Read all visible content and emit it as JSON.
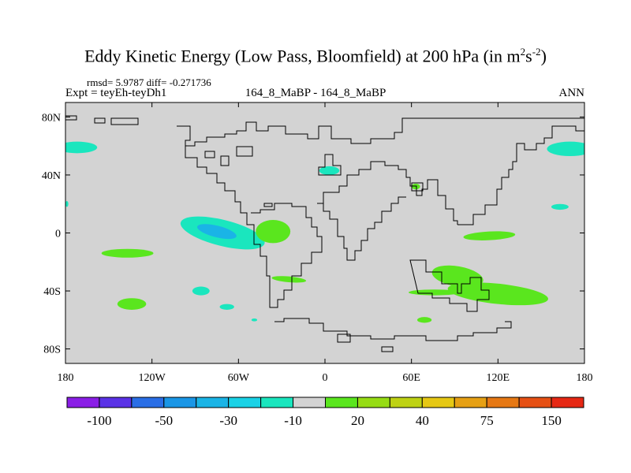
{
  "header": {
    "title_main": "Eddy Kinetic Energy (Low Pass, Bloomfield) at 200 hPa (in m",
    "title_exp1": "2",
    "title_mid": "s",
    "title_exp2": "-2",
    "title_end": ")",
    "stats": "rmsd= 5.9787 diff= -0.271736",
    "expt": "Expt = teyEh-teyDh1",
    "case": "164_8_MaBP - 164_8_MaBP",
    "season": "ANN"
  },
  "chart_data": {
    "type": "heatmap",
    "title": "Eddy Kinetic Energy (Low Pass, Bloomfield) at 200 hPa (in m2s-2)",
    "xlim": [
      -180,
      180
    ],
    "ylim": [
      -90,
      90
    ],
    "x_ticks": [
      {
        "value": -180,
        "label": "180"
      },
      {
        "value": -120,
        "label": "120W"
      },
      {
        "value": -60,
        "label": "60W"
      },
      {
        "value": 0,
        "label": "0"
      },
      {
        "value": 60,
        "label": "60E"
      },
      {
        "value": 120,
        "label": "120E"
      },
      {
        "value": 180,
        "label": "180"
      }
    ],
    "y_ticks": [
      {
        "value": 80,
        "label": "80N"
      },
      {
        "value": 40,
        "label": "40N"
      },
      {
        "value": 0,
        "label": "0"
      },
      {
        "value": -40,
        "label": "40S"
      },
      {
        "value": -80,
        "label": "80S"
      }
    ],
    "colorbar": {
      "colors": [
        "#8a1ee6",
        "#5a32e6",
        "#2a6ee6",
        "#1a96e6",
        "#1ab4e6",
        "#1ad2e6",
        "#1ae6be",
        "#d3d3d3",
        "#5ae61e",
        "#96dc14",
        "#bed214",
        "#e6c814",
        "#e6a014",
        "#e67814",
        "#e65014",
        "#e62814"
      ],
      "labels": [
        {
          "boundary": 1,
          "text": "-100"
        },
        {
          "boundary": 3,
          "text": "-50"
        },
        {
          "boundary": 5,
          "text": "-30"
        },
        {
          "boundary": 7,
          "text": "-10"
        },
        {
          "boundary": 9,
          "text": "20"
        },
        {
          "boundary": 11,
          "text": "40"
        },
        {
          "boundary": 13,
          "text": "75"
        },
        {
          "boundary": 15,
          "text": "150"
        }
      ]
    },
    "regions": [
      {
        "name": "central-pacific-negative",
        "level": "-20",
        "color": "#1ae6be",
        "lon": -71,
        "lat": 0,
        "rlon": 30,
        "rlat": 9,
        "rot": 14
      },
      {
        "name": "central-pacific-core",
        "level": "-30",
        "color": "#1ab4e6",
        "lon": -75,
        "lat": 1,
        "rlon": 14,
        "rlat": 4,
        "rot": 14
      },
      {
        "name": "pacific-positive-strip",
        "level": "15",
        "color": "#5ae61e",
        "lon": -36,
        "lat": 1,
        "rlon": 12,
        "rlat": 8,
        "rot": 0
      },
      {
        "name": "north-pacific-west",
        "level": "-15",
        "color": "#1ae6be",
        "lon": -172,
        "lat": 59,
        "rlon": 14,
        "rlat": 4,
        "rot": 0
      },
      {
        "name": "north-atlantic-east",
        "level": "-15",
        "color": "#1ae6be",
        "lon": 170,
        "lat": 58,
        "rlon": 16,
        "rlat": 5,
        "rot": 0
      },
      {
        "name": "north-pacific-east",
        "level": "-15",
        "color": "#1ae6be",
        "lon": 163,
        "lat": 18,
        "rlon": 6,
        "rlat": 2,
        "rot": 0
      },
      {
        "name": "south-pacific-east-pos",
        "level": "15",
        "color": "#5ae61e",
        "lon": -137,
        "lat": -14,
        "rlon": 18,
        "rlat": 3,
        "rot": 0
      },
      {
        "name": "indian-ocean-pos",
        "level": "15",
        "color": "#5ae61e",
        "lon": 114,
        "lat": -2,
        "rlon": 18,
        "rlat": 3,
        "rot": -3
      },
      {
        "name": "south-indian-pos",
        "level": "15",
        "color": "#5ae61e",
        "lon": 120,
        "lat": -42,
        "rlon": 35,
        "rlat": 7,
        "rot": 6
      },
      {
        "name": "south-ocean-pos",
        "level": "15",
        "color": "#5ae61e",
        "lon": 92,
        "lat": -30,
        "rlon": 18,
        "rlat": 7,
        "rot": 10
      },
      {
        "name": "south-pacific-pos",
        "level": "15",
        "color": "#5ae61e",
        "lon": -134,
        "lat": -49,
        "rlon": 10,
        "rlat": 4,
        "rot": 0
      },
      {
        "name": "south-atlantic-pos",
        "level": "15",
        "color": "#5ae61e",
        "lon": -25,
        "lat": -32,
        "rlon": 12,
        "rlat": 2,
        "rot": 5
      },
      {
        "name": "south-atlantic-east-pos",
        "level": "15",
        "color": "#5ae61e",
        "lon": 76,
        "lat": -41,
        "rlon": 18,
        "rlat": 2,
        "rot": 0
      },
      {
        "name": "south-atlantic-small",
        "level": "15",
        "color": "#5ae61e",
        "lon": 69,
        "lat": -60,
        "rlon": 5,
        "rlat": 2,
        "rot": 0
      },
      {
        "name": "southern-negative-1",
        "level": "-15",
        "color": "#1ae6be",
        "lon": -86,
        "lat": -40,
        "rlon": 6,
        "rlat": 3,
        "rot": 0
      },
      {
        "name": "southern-negative-2",
        "level": "-15",
        "color": "#1ae6be",
        "lon": -68,
        "lat": -51,
        "rlon": 5,
        "rlat": 2,
        "rot": 0
      },
      {
        "name": "europe-negative",
        "level": "-15",
        "color": "#1ae6be",
        "lon": 3,
        "lat": 43,
        "rlon": 7,
        "rlat": 3,
        "rot": 0
      },
      {
        "name": "asia-positive",
        "level": "15",
        "color": "#5ae61e",
        "lon": 63,
        "lat": 32,
        "rlon": 3,
        "rlat": 2,
        "rot": 0
      },
      {
        "name": "tiny-ne-pacific",
        "level": "-15",
        "color": "#1ae6be",
        "lon": -49,
        "lat": -60,
        "rlon": 2,
        "rlat": 1,
        "rot": 0
      },
      {
        "name": "tiny-west-edge",
        "level": "-15",
        "color": "#1ae6be",
        "lon": -179,
        "lat": 20,
        "rlon": 1,
        "rlat": 2,
        "rot": 0
      }
    ]
  }
}
